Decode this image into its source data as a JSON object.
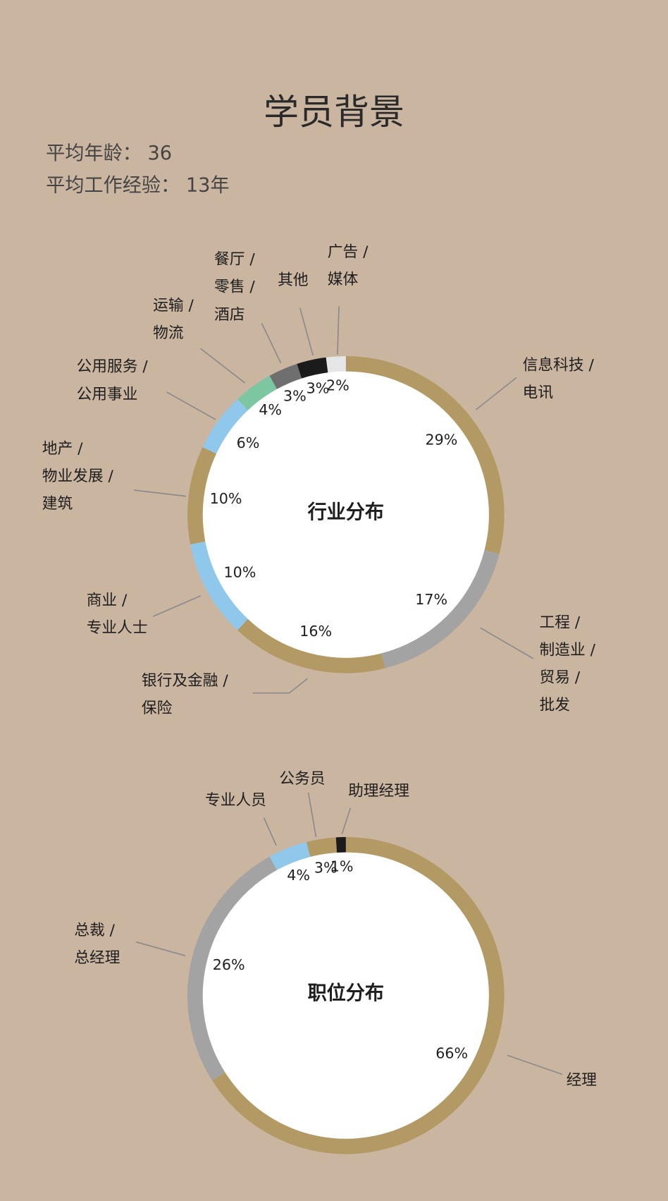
{
  "header": {
    "title": "学员背景",
    "stats": [
      "平均年龄： 36",
      "平均工作经验： 13年"
    ]
  },
  "chart_data": [
    {
      "type": "donut",
      "title": "行业分布",
      "categories": [
        "信息科技 /\n电讯",
        "工程 /\n制造业 /\n贸易 /\n批发",
        "银行及金融 /\n保险",
        "商业 /\n专业人士",
        "地产 /\n物业发展 /\n建筑",
        "公用服务 /\n公用事业",
        "运输 /\n物流",
        "餐厅 /\n零售 /\n酒店",
        "其他",
        "广告 /\n媒体"
      ],
      "values": [
        29,
        17,
        16,
        10,
        10,
        6,
        4,
        3,
        3,
        2
      ],
      "value_labels": [
        "29%",
        "17%",
        "16%",
        "10%",
        "10%",
        "6%",
        "4%",
        "3%",
        "3%",
        "2%"
      ],
      "colors": [
        "#b39a64",
        "#a3a3a3",
        "#b39a64",
        "#8fc8ea",
        "#b39a64",
        "#8fc8ea",
        "#7cc6a2",
        "#6f6f6f",
        "#1b1b1b",
        "#e6e6e6"
      ]
    },
    {
      "type": "donut",
      "title": "职位分布",
      "categories": [
        "经理",
        "总裁 /\n总经理",
        "专业人员",
        "公务员",
        "助理经理"
      ],
      "values": [
        66,
        26,
        4,
        3,
        1
      ],
      "value_labels": [
        "66%",
        "26%",
        "4%",
        "3%",
        "1%"
      ],
      "colors": [
        "#b39a64",
        "#a3a3a3",
        "#8fc8ea",
        "#b39a64",
        "#1b1b1b"
      ]
    }
  ]
}
